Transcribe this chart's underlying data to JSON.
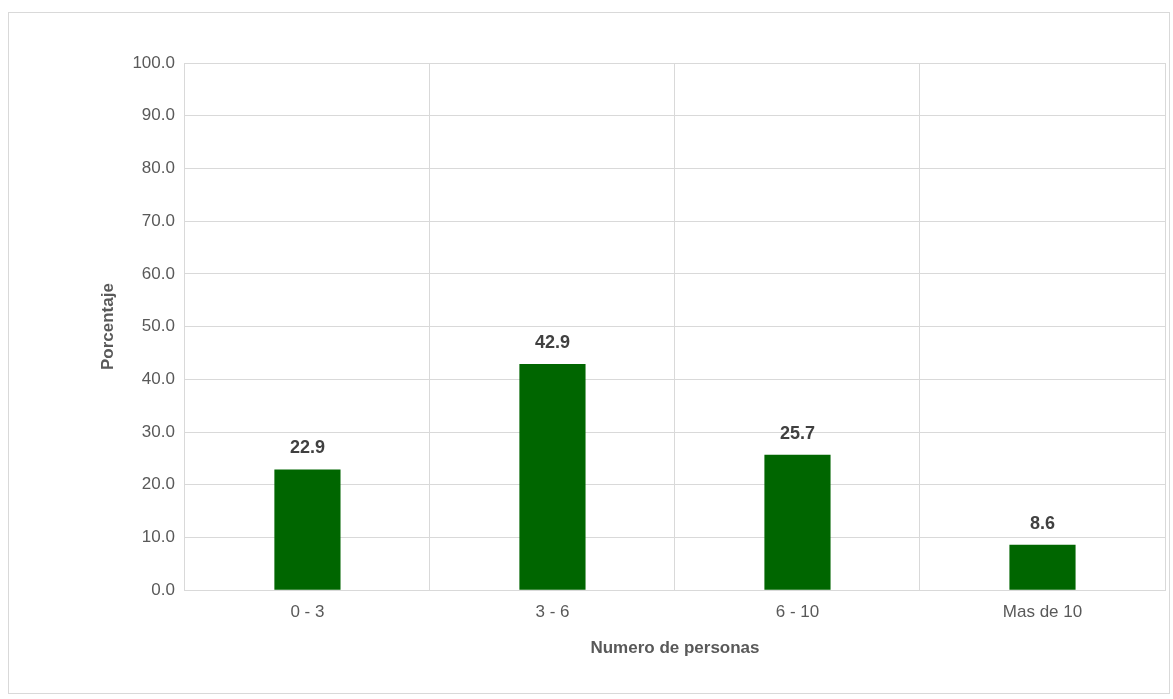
{
  "chart_data": {
    "type": "bar",
    "xlabel": "Numero de personas",
    "ylabel": "Porcentaje",
    "categories": [
      "0 - 3",
      "3 - 6",
      "6 - 10",
      "Mas de 10"
    ],
    "values": [
      22.9,
      42.9,
      25.7,
      8.6
    ],
    "color": "#006600",
    "ylim": [
      0,
      100
    ],
    "yticks": [
      {
        "value": 0,
        "label": "0.0"
      },
      {
        "value": 10,
        "label": "10.0"
      },
      {
        "value": 20,
        "label": "20.0"
      },
      {
        "value": 30,
        "label": "30.0"
      },
      {
        "value": 40,
        "label": "40.0"
      },
      {
        "value": 50,
        "label": "50.0"
      },
      {
        "value": 60,
        "label": "60.0"
      },
      {
        "value": 70,
        "label": "70.0"
      },
      {
        "value": 80,
        "label": "80.0"
      },
      {
        "value": 90,
        "label": "90.0"
      },
      {
        "value": 100,
        "label": "100.0"
      }
    ],
    "grid": true,
    "data_labels": true,
    "legend": false
  }
}
